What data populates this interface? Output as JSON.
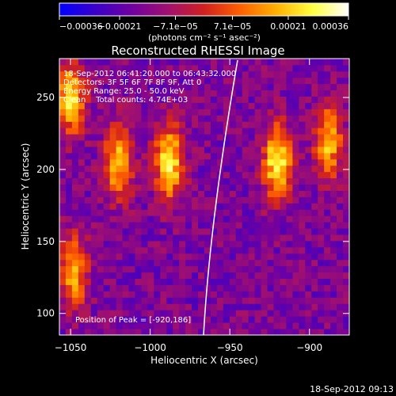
{
  "chart_data": {
    "type": "heatmap",
    "title": "Reconstructed RHESSI Image",
    "xlabel": "Heliocentric X (arcsec)",
    "ylabel": "Heliocentric Y (arcsec)",
    "xlim": [
      -1057,
      -875
    ],
    "ylim": [
      85,
      277
    ],
    "x_ticks": [
      -1050,
      -1000,
      -950,
      -900
    ],
    "x_tick_labels": [
      "−1050",
      "−1000",
      "−950",
      "−900"
    ],
    "y_ticks": [
      100,
      150,
      200,
      250
    ],
    "y_tick_labels": [
      "100",
      "150",
      "200",
      "250"
    ],
    "colorbar": {
      "unit": "(photons cm⁻² s⁻¹ asec⁻²)",
      "range": [
        -0.00036,
        0.00036
      ],
      "ticks": [
        -0.00036,
        -0.00021,
        -7.1e-05,
        7.1e-05,
        0.00021,
        0.00036
      ],
      "tick_labels": [
        "−0.00036",
        "−0.00021",
        "−7.1e−05",
        "7.1e−05",
        "0.00021",
        "0.00036"
      ],
      "colormap": [
        "#0000ff",
        "#3a00c8",
        "#7000a0",
        "#a01070",
        "#d02020",
        "#ff6000",
        "#ffb000",
        "#ffff40",
        "#ffffff"
      ]
    },
    "annotations": [
      "18-Sep-2012 06:41:20.000 to 06:43:32.000",
      "Detectors: 3F 5F 6F 7F 8F 9F, Att 0",
      "Energy Range: 25.0 - 50.0 keV",
      "Clean    Total counts: 4.74E+03"
    ],
    "peak_label": "Position of Peak = [-920,186]",
    "peak_position": [
      -920,
      186
    ],
    "limb": "solar limb arc from (-950, 85) to (-930, 277)",
    "sources_approx": [
      {
        "x": -1050,
        "y": 250,
        "level": 0.9
      },
      {
        "x": -1020,
        "y": 205,
        "level": 0.8
      },
      {
        "x": -988,
        "y": 205,
        "level": 0.95
      },
      {
        "x": -920,
        "y": 205,
        "level": 1.0
      },
      {
        "x": -888,
        "y": 220,
        "level": 0.8
      },
      {
        "x": -1048,
        "y": 130,
        "level": 0.75
      }
    ]
  },
  "footer_timestamp": "18-Sep-2012 09:13"
}
